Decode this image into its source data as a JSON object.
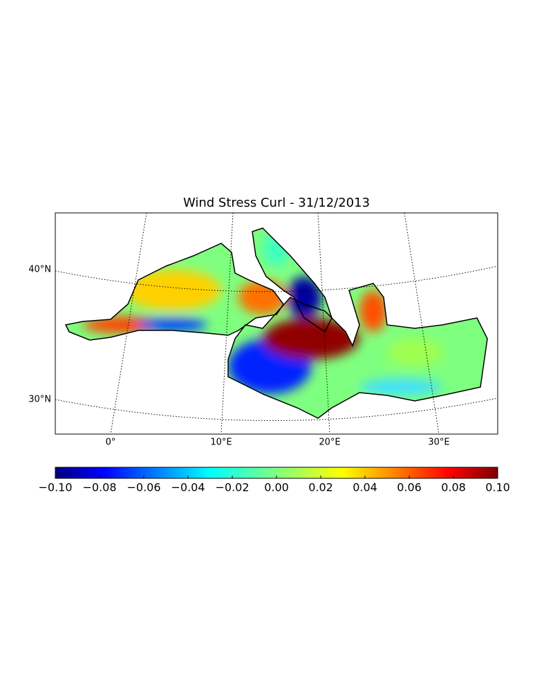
{
  "title": "Wind Stress Curl - 31/12/2013",
  "map": {
    "lat_labels": [
      "40°N",
      "30°N"
    ],
    "lon_labels": [
      "0°",
      "10°E",
      "20°E",
      "30°E"
    ]
  },
  "colorbar": {
    "colormap": "jet",
    "lim": [
      -0.1,
      0.1
    ],
    "ticks": [
      {
        "value": -0.1,
        "label": "−0.10"
      },
      {
        "value": -0.08,
        "label": "−0.08"
      },
      {
        "value": -0.06,
        "label": "−0.06"
      },
      {
        "value": -0.04,
        "label": "−0.04"
      },
      {
        "value": -0.02,
        "label": "−0.02"
      },
      {
        "value": 0,
        "label": "0.00"
      },
      {
        "value": 0.02,
        "label": "0.02"
      },
      {
        "value": 0.04,
        "label": "0.04"
      },
      {
        "value": 0.06,
        "label": "0.06"
      },
      {
        "value": 0.08,
        "label": "0.08"
      },
      {
        "value": 0.1,
        "label": "0.10"
      }
    ]
  }
}
